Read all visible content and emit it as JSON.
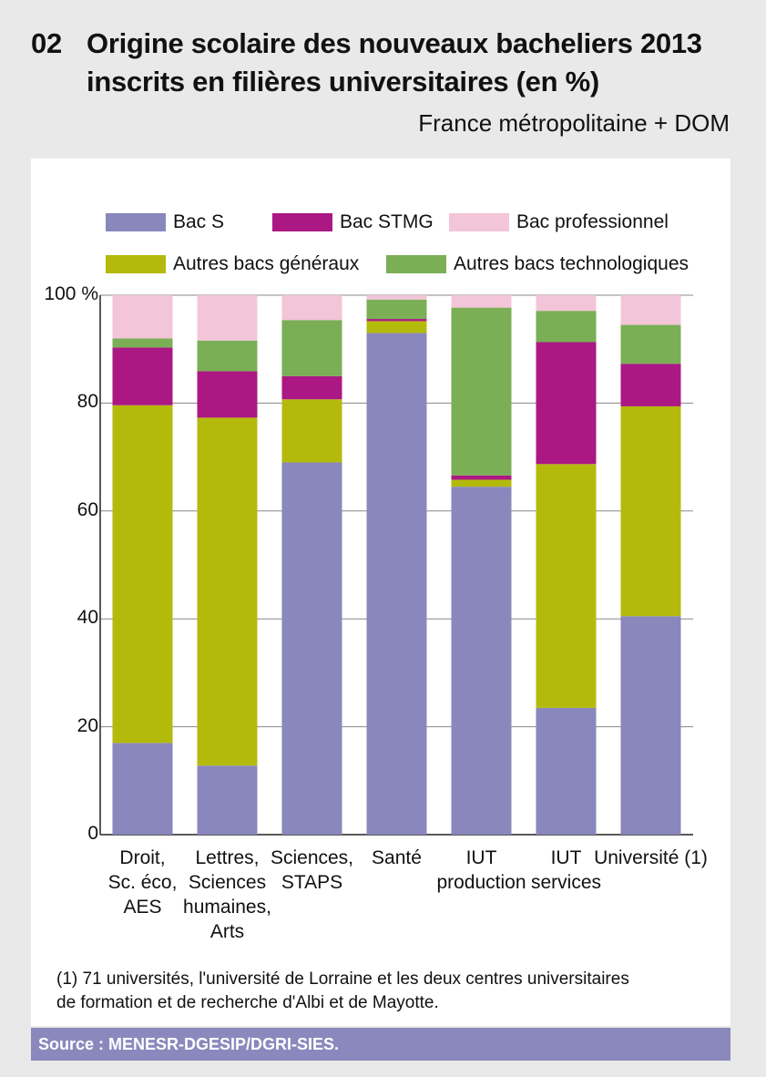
{
  "header": {
    "number": "02",
    "title_line1": "Origine scolaire des nouveaux bacheliers 2013",
    "title_line2": "inscrits en filières universitaires (en %)",
    "subtitle": "France métropolitaine + DOM"
  },
  "colors": {
    "bac_s": "#8a87bd",
    "bac_stmg": "#ab1883",
    "bac_pro": "#f3c5d9",
    "autres_gen": "#b4ba0c",
    "autres_tech": "#7aaf56",
    "background": "#e9e9e9",
    "source_bar": "#8b88bd"
  },
  "chart_data": {
    "type": "bar",
    "stacked": true,
    "ylim": [
      0,
      100
    ],
    "yticks": [
      "100 %",
      "80",
      "60",
      "40",
      "20",
      "0"
    ],
    "categories": [
      "Droit,\nSc. éco,\nAES",
      "Lettres,\nSciences\nhumaines,\nArts",
      "Sciences,\nSTAPS",
      "Santé",
      "IUT\nproduction",
      "IUT\nservices",
      "Université (1)"
    ],
    "series": [
      {
        "name": "Bac S",
        "color_key": "bac_s",
        "values": [
          17,
          12.8,
          69,
          93,
          64.5,
          23.5,
          40.5
        ]
      },
      {
        "name": "Autres bacs généraux",
        "color_key": "autres_gen",
        "values": [
          62.6,
          64.5,
          11.7,
          2.2,
          1.3,
          45.2,
          38.9
        ]
      },
      {
        "name": "Bac STMG",
        "color_key": "bac_stmg",
        "values": [
          10.7,
          8.6,
          4.3,
          0.4,
          0.8,
          22.6,
          7.9
        ]
      },
      {
        "name": "Autres bacs technologiques",
        "color_key": "autres_tech",
        "values": [
          1.7,
          5.7,
          10.4,
          3.6,
          31.1,
          5.8,
          7.2
        ]
      },
      {
        "name": "Bac professionnel",
        "color_key": "bac_pro",
        "values": [
          8.0,
          8.4,
          4.6,
          0.8,
          2.3,
          2.9,
          5.5
        ]
      }
    ],
    "legend": [
      {
        "name": "Bac S",
        "color_key": "bac_s"
      },
      {
        "name": "Bac STMG",
        "color_key": "bac_stmg"
      },
      {
        "name": "Bac professionnel",
        "color_key": "bac_pro"
      },
      {
        "name": "Autres bacs généraux",
        "color_key": "autres_gen"
      },
      {
        "name": "Autres bacs technologiques",
        "color_key": "autres_tech"
      }
    ],
    "legend_position": "top",
    "grid": true
  },
  "footnote": {
    "line1": "(1) 71 universités, l'université de Lorraine et les deux centres universitaires",
    "line2": "de formation et de recherche d'Albi et de Mayotte."
  },
  "source": "Source : MENESR-DGESIP/DGRI-SIES."
}
